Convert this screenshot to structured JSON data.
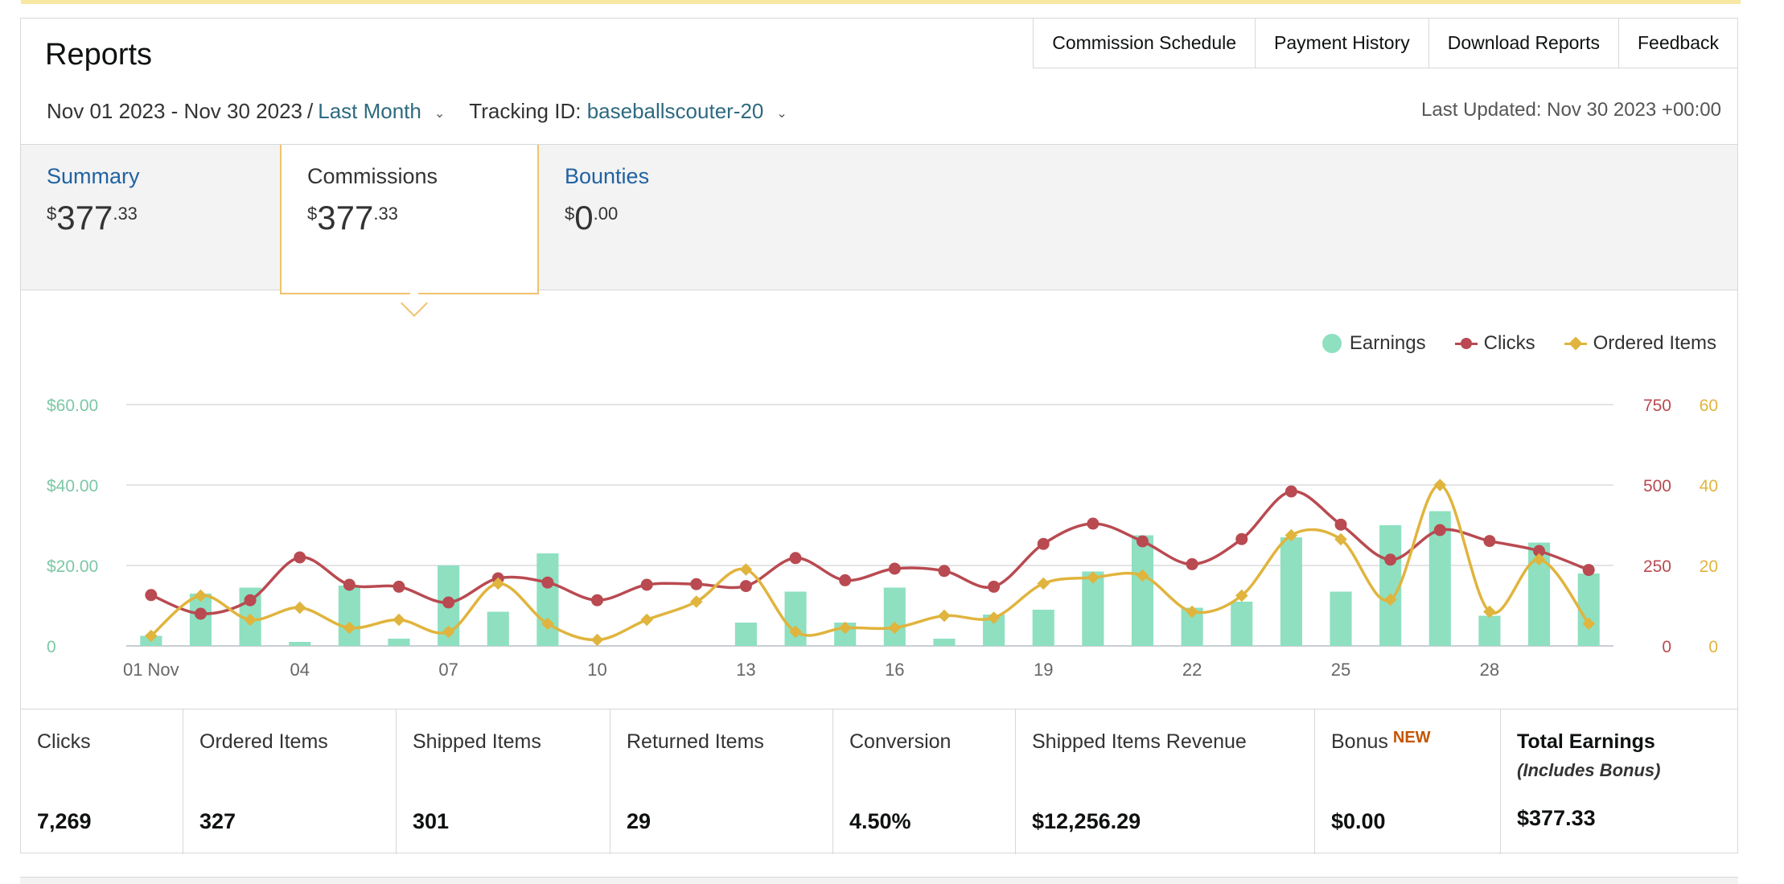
{
  "page": {
    "title": "Reports"
  },
  "topnav": [
    {
      "label": "Commission Schedule"
    },
    {
      "label": "Payment History"
    },
    {
      "label": "Download Reports"
    },
    {
      "label": "Feedback"
    }
  ],
  "filters": {
    "date_range": "Nov 01 2023 - Nov 30 2023",
    "period": "Last Month",
    "tracking_label": "Tracking ID:",
    "tracking_id": "baseballscouter-20"
  },
  "last_updated": "Last Updated: Nov 30 2023 +00:00",
  "tabs": [
    {
      "label": "Summary",
      "currency": "$",
      "whole": "377",
      "cents": ".33"
    },
    {
      "label": "Commissions",
      "currency": "$",
      "whole": "377",
      "cents": ".33"
    },
    {
      "label": "Bounties",
      "currency": "$",
      "whole": "0",
      "cents": ".00"
    }
  ],
  "legend": [
    {
      "label": "Earnings",
      "color": "#8ee0c1"
    },
    {
      "label": "Clicks",
      "color": "#b94a51"
    },
    {
      "label": "Ordered Items",
      "color": "#e0b43d"
    }
  ],
  "chart_data": {
    "type": "bar",
    "x": [
      "01 Nov",
      "02",
      "03",
      "04",
      "05",
      "06",
      "07",
      "08",
      "09",
      "10",
      "11",
      "12",
      "13",
      "14",
      "15",
      "16",
      "17",
      "18",
      "19",
      "20",
      "21",
      "22",
      "23",
      "24",
      "25",
      "26",
      "27",
      "28",
      "29",
      "30"
    ],
    "x_tick_labels": [
      "01 Nov",
      "04",
      "07",
      "10",
      "13",
      "16",
      "19",
      "22",
      "25",
      "28"
    ],
    "y_left_ticks": [
      "$60.00",
      "$40.00",
      "$20.00",
      "0"
    ],
    "y_right_clicks_ticks": [
      "750",
      "500",
      "250",
      "0"
    ],
    "y_right_items_ticks": [
      "60",
      "40",
      "20",
      "0"
    ],
    "y_left_range": [
      0,
      60
    ],
    "y_clicks_range": [
      0,
      750
    ],
    "y_items_range": [
      0,
      60
    ],
    "grid": true,
    "legend_position": "top-right",
    "series": [
      {
        "name": "Earnings",
        "kind": "bar",
        "axis": "left",
        "color": "#8ee0c1",
        "values": [
          2.5,
          13,
          14.5,
          1,
          15,
          1.8,
          20,
          8.5,
          23,
          0,
          0,
          0,
          5.8,
          13.5,
          5.8,
          14.5,
          1.8,
          7.8,
          9,
          18.5,
          27.5,
          9.5,
          11,
          27,
          13.5,
          30,
          33.5,
          7.5,
          25.7,
          18
        ]
      },
      {
        "name": "Clicks",
        "kind": "line",
        "axis": "right-clicks",
        "color": "#b94a51",
        "values": [
          158,
          100,
          142,
          275,
          190,
          184,
          135,
          210,
          197,
          142,
          190,
          192,
          186,
          273,
          204,
          240,
          233,
          184,
          317,
          380,
          325,
          254,
          332,
          480,
          377,
          268,
          360,
          326,
          295,
          236
        ]
      },
      {
        "name": "Ordered Items",
        "kind": "line",
        "axis": "right-items",
        "color": "#e0b43d",
        "values": [
          2.5,
          12.5,
          6.5,
          9.5,
          4.5,
          6.5,
          3.5,
          15.5,
          5.5,
          1.5,
          6.5,
          11,
          19,
          3.5,
          4.5,
          4.5,
          7.5,
          7,
          15.5,
          17,
          17.5,
          8.5,
          12.5,
          27.5,
          26.5,
          11.5,
          40,
          8.5,
          21.5,
          5.5
        ]
      }
    ]
  },
  "stats": [
    {
      "label": "Clicks",
      "value": "7,269"
    },
    {
      "label": "Ordered Items",
      "value": "327"
    },
    {
      "label": "Shipped Items",
      "value": "301"
    },
    {
      "label": "Returned Items",
      "value": "29"
    },
    {
      "label": "Conversion",
      "value": "4.50%"
    },
    {
      "label": "Shipped Items Revenue",
      "value": "$12,256.29"
    },
    {
      "label": "Bonus",
      "badge": "NEW",
      "value": "$0.00"
    },
    {
      "label": "Total Earnings",
      "sub": "(Includes Bonus)",
      "value": "$377.33"
    }
  ]
}
